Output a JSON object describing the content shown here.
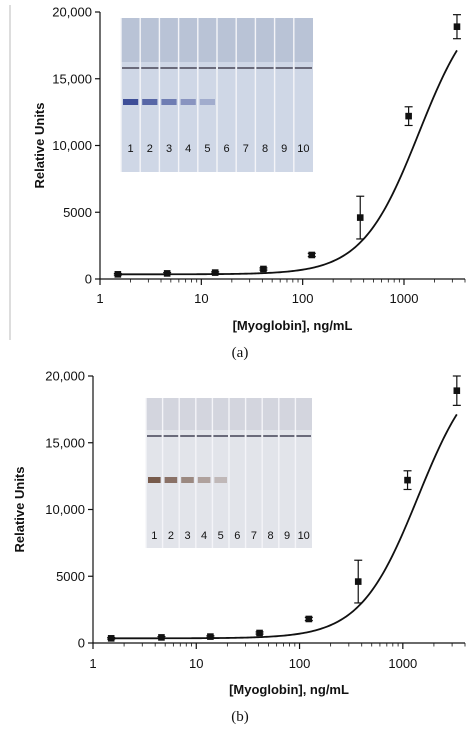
{
  "chart_data": [
    {
      "type": "scatter",
      "panel_label": "(a)",
      "xlabel": "[Myoglobin], ng/mL",
      "ylabel": "Relative Units",
      "x_scale": "log",
      "xlim": [
        1,
        4000
      ],
      "ylim": [
        0,
        20000
      ],
      "x_ticks": [
        {
          "value": 1,
          "label": "1"
        },
        {
          "value": 10,
          "label": "10"
        },
        {
          "value": 100,
          "label": "100"
        },
        {
          "value": 1000,
          "label": "1000"
        }
      ],
      "y_ticks": [
        {
          "value": 0,
          "label": "0"
        },
        {
          "value": 5000,
          "label": "5000"
        },
        {
          "value": 10000,
          "label": "10,000"
        },
        {
          "value": 15000,
          "label": "15,000"
        },
        {
          "value": 20000,
          "label": "20,000"
        }
      ],
      "points": [
        {
          "x": 1.5,
          "y": 350,
          "err": 60
        },
        {
          "x": 4.6,
          "y": 420,
          "err": 60
        },
        {
          "x": 13.7,
          "y": 480,
          "err": 60
        },
        {
          "x": 41,
          "y": 750,
          "err": 80
        },
        {
          "x": 123,
          "y": 1800,
          "err": 120
        },
        {
          "x": 370,
          "y": 4600,
          "err": 1600
        },
        {
          "x": 1111,
          "y": 12200,
          "err": 700
        },
        {
          "x": 3333,
          "y": 18900,
          "err": 900
        }
      ],
      "inset_lanes": [
        "1",
        "2",
        "3",
        "4",
        "5",
        "6",
        "7",
        "8",
        "9",
        "10"
      ]
    },
    {
      "type": "scatter",
      "panel_label": "(b)",
      "xlabel": "[Myoglobin], ng/mL",
      "ylabel": "Relative Units",
      "x_scale": "log",
      "xlim": [
        1,
        4000
      ],
      "ylim": [
        0,
        20000
      ],
      "x_ticks": [
        {
          "value": 1,
          "label": "1"
        },
        {
          "value": 10,
          "label": "10"
        },
        {
          "value": 100,
          "label": "100"
        },
        {
          "value": 1000,
          "label": "1000"
        }
      ],
      "y_ticks": [
        {
          "value": 0,
          "label": "0"
        },
        {
          "value": 5000,
          "label": "5000"
        },
        {
          "value": 10000,
          "label": "10,000"
        },
        {
          "value": 15000,
          "label": "15,000"
        },
        {
          "value": 20000,
          "label": "20,000"
        }
      ],
      "points": [
        {
          "x": 1.5,
          "y": 350,
          "err": 60
        },
        {
          "x": 4.6,
          "y": 420,
          "err": 60
        },
        {
          "x": 13.7,
          "y": 480,
          "err": 60
        },
        {
          "x": 41,
          "y": 750,
          "err": 80
        },
        {
          "x": 123,
          "y": 1800,
          "err": 120
        },
        {
          "x": 370,
          "y": 4600,
          "err": 1600
        },
        {
          "x": 1111,
          "y": 12200,
          "err": 700
        },
        {
          "x": 3333,
          "y": 18900,
          "err": 1100
        }
      ],
      "inset_lanes": [
        "1",
        "2",
        "3",
        "4",
        "5",
        "6",
        "7",
        "8",
        "9",
        "10"
      ]
    }
  ]
}
